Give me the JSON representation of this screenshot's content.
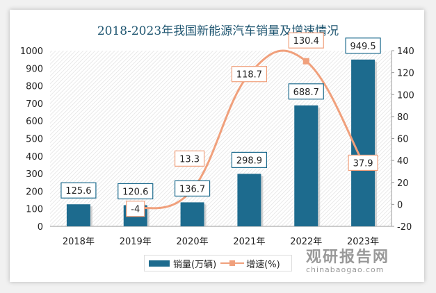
{
  "chart_data": {
    "type": "bar+line",
    "title": "2018-2023年我国新能源汽车销量及增速情况",
    "categories": [
      "2018年",
      "2019年",
      "2020年",
      "2021年",
      "2022年",
      "2023年"
    ],
    "series": [
      {
        "name": "销量(万辆)",
        "type": "bar",
        "axis": "left",
        "values": [
          125.6,
          120.6,
          136.7,
          298.9,
          688.7,
          949.5
        ],
        "color": "#1d6b8e"
      },
      {
        "name": "增速(%)",
        "type": "line",
        "axis": "right",
        "values": [
          null,
          -4,
          13.3,
          118.7,
          130.4,
          37.9
        ],
        "color": "#f0a07c"
      }
    ],
    "y_left": {
      "lim": [
        0,
        1000
      ],
      "ticks": [
        0,
        100,
        200,
        300,
        400,
        500,
        600,
        700,
        800,
        900,
        1000
      ]
    },
    "y_right": {
      "lim": [
        -20,
        140
      ],
      "ticks": [
        -20,
        0,
        20,
        40,
        60,
        80,
        100,
        120,
        140
      ]
    },
    "legend": "bottom"
  },
  "watermark": {
    "name": "观研报告网",
    "url": "chinabaogao.com"
  }
}
